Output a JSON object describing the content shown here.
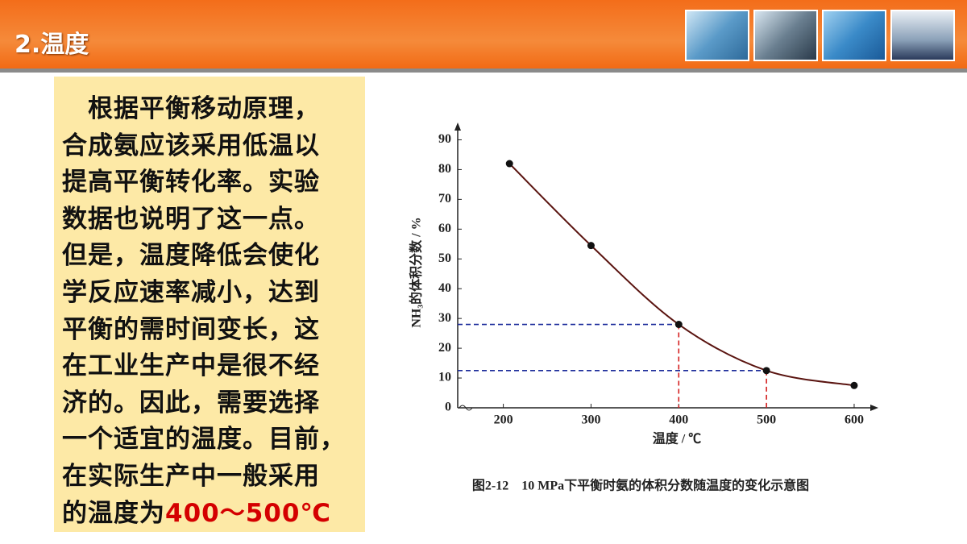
{
  "header": {
    "title": "2.温度"
  },
  "text": {
    "lines": [
      "根据平衡移动原理，",
      "合成氨应该采用低温以",
      "提高平衡转化率。实验",
      "数据也说明了这一点。",
      "但是，温度降低会使化",
      "学反应速率减小，达到",
      "平衡的需时间变长，这",
      "在工业生产中是很不经",
      "济的。因此，需要选择",
      "一个适宜的温度。目前，",
      "在实际生产中一般采用"
    ],
    "last_line": {
      "prefix": "的温度为",
      "highlight": "400～500℃"
    }
  },
  "chart_data": {
    "type": "line",
    "x_label": "温度 / ℃",
    "y_label": "NH₃的体积分数 / %",
    "caption": "图2-12　10 MPa下平衡时氨的体积分数随温度的变化示意图",
    "x": [
      207,
      300,
      400,
      500,
      600
    ],
    "values": [
      82,
      54.5,
      28,
      12.5,
      7.5
    ],
    "line_color": "#5a1410",
    "marker_color": "#111111",
    "xlim": [
      148,
      623
    ],
    "ylim": [
      0,
      95
    ],
    "xticks": [
      200,
      300,
      400,
      500,
      600
    ],
    "yticks": [
      0,
      10,
      20,
      30,
      40,
      50,
      60,
      70,
      80,
      90
    ],
    "guides": [
      {
        "x": 400,
        "y": 28
      },
      {
        "x": 500,
        "y": 12.5
      }
    ],
    "guide_h_color": "#1a2a9a",
    "guide_v_color": "#d42020"
  }
}
